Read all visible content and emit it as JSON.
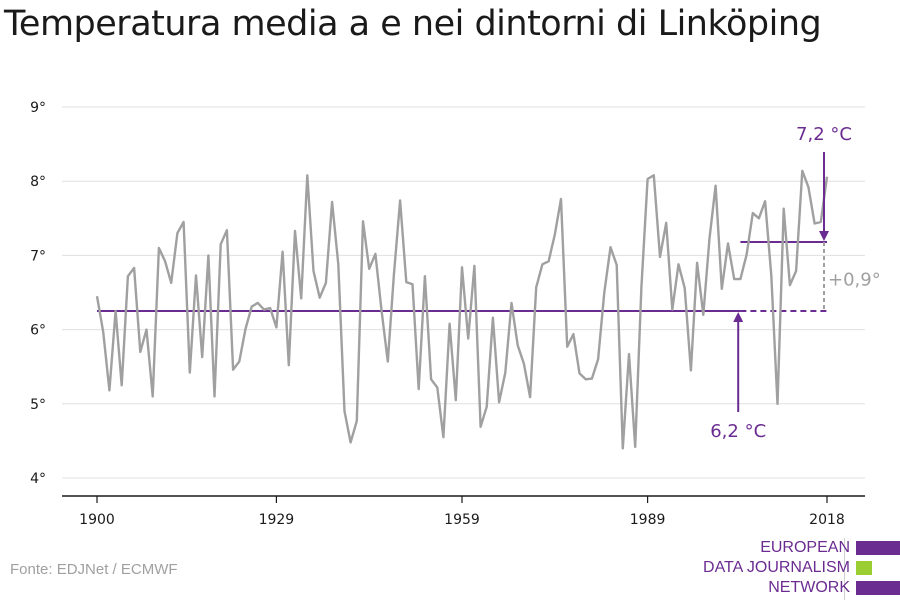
{
  "title": "Temperatura media a e nei dintorni di Linköping",
  "source": "Fonte: EDJNet / ECMWF",
  "logo": {
    "lines": [
      "EUROPEAN",
      "DATA JOURNALISM",
      "NETWORK"
    ],
    "colors": [
      "#6b2c91",
      "#9acd32",
      "#6b2c91"
    ]
  },
  "colors": {
    "line": "#a0a0a0",
    "accent": "#6b2c91",
    "grid": "#e0e0e0",
    "axis": "#1a1a1a",
    "delta_text": "#a0a0a0"
  },
  "chart_data": {
    "type": "line",
    "title": "Temperatura media a e nei dintorni di Linköping",
    "xlabel": "",
    "ylabel": "",
    "xlim": [
      1900,
      2018
    ],
    "ylim": [
      4,
      9
    ],
    "x_ticks": [
      1900,
      1929,
      1959,
      1989,
      2018
    ],
    "x_tick_labels": [
      "1900",
      "1929",
      "1959",
      "1989",
      "2018"
    ],
    "y_ticks": [
      4,
      5,
      6,
      7,
      8,
      9
    ],
    "y_tick_labels": [
      "4°",
      "5°",
      "6°",
      "7°",
      "8°",
      "9°"
    ],
    "grid": true,
    "series": [
      {
        "x": [
          1900,
          1901,
          1902,
          1903,
          1904,
          1905,
          1906,
          1907,
          1908,
          1909,
          1910,
          1911,
          1912,
          1913,
          1914,
          1915,
          1916,
          1917,
          1918,
          1919,
          1920,
          1921,
          1922,
          1923,
          1924,
          1925,
          1926,
          1927,
          1928,
          1929,
          1930,
          1931,
          1932,
          1933,
          1934,
          1935,
          1936,
          1937,
          1938,
          1939,
          1940,
          1941,
          1942,
          1943,
          1944,
          1945,
          1946,
          1947,
          1948,
          1949,
          1950,
          1951,
          1952,
          1953,
          1954,
          1955,
          1956,
          1957,
          1958,
          1959,
          1960,
          1961,
          1962,
          1963,
          1964,
          1965,
          1966,
          1967,
          1968,
          1969,
          1970,
          1971,
          1972,
          1973,
          1974,
          1975,
          1976,
          1977,
          1978,
          1979,
          1980,
          1981,
          1982,
          1983,
          1984,
          1985,
          1986,
          1987,
          1988,
          1989,
          1990,
          1991,
          1992,
          1993,
          1994,
          1995,
          1996,
          1997,
          1998,
          1999,
          2000,
          2001,
          2002,
          2003,
          2004,
          2005,
          2006,
          2007,
          2008,
          2009,
          2010,
          2011,
          2012,
          2013,
          2014,
          2015,
          2016,
          2017,
          2018
        ],
        "values": [
          6.45,
          5.97,
          5.18,
          6.25,
          5.25,
          6.72,
          6.83,
          5.7,
          6.0,
          5.1,
          7.1,
          6.92,
          6.63,
          7.3,
          7.45,
          5.42,
          6.73,
          5.63,
          7.0,
          5.1,
          7.15,
          7.34,
          5.46,
          5.57,
          6.01,
          6.31,
          6.36,
          6.27,
          6.29,
          6.03,
          7.05,
          5.52,
          7.33,
          6.42,
          8.08,
          6.79,
          6.43,
          6.63,
          7.72,
          6.88,
          4.9,
          4.48,
          4.77,
          7.46,
          6.82,
          7.02,
          6.25,
          5.57,
          6.74,
          7.74,
          6.64,
          6.61,
          5.2,
          6.72,
          5.33,
          5.22,
          4.55,
          6.08,
          5.05,
          6.84,
          5.88,
          6.86,
          4.69,
          4.96,
          6.16,
          5.02,
          5.42,
          6.36,
          5.79,
          5.54,
          5.09,
          6.57,
          6.88,
          6.92,
          7.28,
          7.76,
          5.77,
          5.94,
          5.41,
          5.33,
          5.34,
          5.6,
          6.5,
          7.11,
          6.87,
          4.4,
          5.67,
          4.42,
          6.57,
          8.03,
          8.08,
          6.98,
          7.44,
          6.27,
          6.88,
          6.56,
          5.45,
          6.9,
          6.2,
          7.23,
          7.94,
          6.55,
          7.16,
          6.68,
          6.68,
          7.01,
          7.57,
          7.5,
          7.73,
          6.73,
          5.0,
          7.63,
          6.6,
          6.79,
          8.14,
          7.92,
          7.43,
          7.45,
          8.06
        ]
      }
    ],
    "reference_lines": [
      {
        "label": "6,2 °C",
        "y": 6.25,
        "x_start": 1900,
        "x_end": 2004,
        "style": "solid"
      },
      {
        "label": "",
        "y": 6.25,
        "x_start": 2004,
        "x_end": 2018,
        "style": "dashed"
      },
      {
        "label": "7,2 °C",
        "y": 7.18,
        "x_start": 2004,
        "x_end": 2018,
        "style": "solid"
      }
    ],
    "annotations": [
      {
        "text": "7,2 °C",
        "x": 2018,
        "y": 7.18
      },
      {
        "text": "6,2 °C",
        "x": 2003,
        "y": 6.25
      },
      {
        "text": "+0,9°",
        "x": 2018,
        "y": 6.7
      }
    ]
  }
}
